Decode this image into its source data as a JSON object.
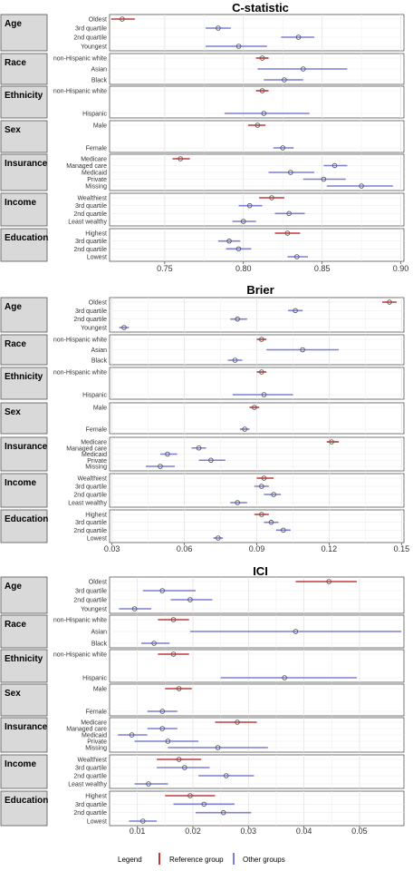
{
  "legend": {
    "title": "Legend",
    "reference": {
      "label": "Reference group",
      "color": "#c0393b"
    },
    "other": {
      "label": "Other groups",
      "color": "#7d7fd4"
    }
  },
  "chart_data": [
    {
      "type": "forest",
      "title": "C-statistic",
      "xlim": [
        0.715,
        0.902
      ],
      "xticks": [
        0.75,
        0.8,
        0.85,
        0.9
      ],
      "xtick_labels": [
        "0.75",
        "0.80",
        "0.85",
        "0.90"
      ],
      "groups": [
        {
          "name": "Age",
          "items": [
            {
              "label": "Oldest",
              "ref": true,
              "est": 0.723,
              "lo": 0.716,
              "hi": 0.731
            },
            {
              "label": "3rd quartile",
              "ref": false,
              "est": 0.784,
              "lo": 0.776,
              "hi": 0.792
            },
            {
              "label": "2nd quartile",
              "ref": false,
              "est": 0.835,
              "lo": 0.824,
              "hi": 0.845
            },
            {
              "label": "Youngest",
              "ref": false,
              "est": 0.797,
              "lo": 0.776,
              "hi": 0.815
            }
          ]
        },
        {
          "name": "Race",
          "items": [
            {
              "label": "non-Hispanic white",
              "ref": true,
              "est": 0.812,
              "lo": 0.808,
              "hi": 0.816
            },
            {
              "label": "Asian",
              "ref": false,
              "est": 0.838,
              "lo": 0.809,
              "hi": 0.866
            },
            {
              "label": "Black",
              "ref": false,
              "est": 0.826,
              "lo": 0.813,
              "hi": 0.838
            }
          ]
        },
        {
          "name": "Ethnicity",
          "items": [
            {
              "label": "non-Hispanic white",
              "ref": true,
              "est": 0.812,
              "lo": 0.808,
              "hi": 0.816
            },
            {
              "label": "Hispanic",
              "ref": false,
              "est": 0.813,
              "lo": 0.788,
              "hi": 0.842
            }
          ]
        },
        {
          "name": "Sex",
          "items": [
            {
              "label": "Male",
              "ref": true,
              "est": 0.809,
              "lo": 0.803,
              "hi": 0.814
            },
            {
              "label": "Female",
              "ref": false,
              "est": 0.825,
              "lo": 0.819,
              "hi": 0.832
            }
          ]
        },
        {
          "name": "Insurance",
          "items": [
            {
              "label": "Medicare",
              "ref": true,
              "est": 0.76,
              "lo": 0.755,
              "hi": 0.766
            },
            {
              "label": "Managed care",
              "ref": false,
              "est": 0.858,
              "lo": 0.851,
              "hi": 0.866
            },
            {
              "label": "Medicaid",
              "ref": false,
              "est": 0.83,
              "lo": 0.816,
              "hi": 0.845
            },
            {
              "label": "Private",
              "ref": false,
              "est": 0.851,
              "lo": 0.838,
              "hi": 0.865
            },
            {
              "label": "Missing",
              "ref": false,
              "est": 0.875,
              "lo": 0.853,
              "hi": 0.895
            }
          ]
        },
        {
          "name": "Income",
          "items": [
            {
              "label": "Wealthiest",
              "ref": true,
              "est": 0.818,
              "lo": 0.81,
              "hi": 0.826
            },
            {
              "label": "3rd quartile",
              "ref": false,
              "est": 0.804,
              "lo": 0.797,
              "hi": 0.812
            },
            {
              "label": "2nd quartile",
              "ref": false,
              "est": 0.829,
              "lo": 0.82,
              "hi": 0.839
            },
            {
              "label": "Least wealthy",
              "ref": false,
              "est": 0.8,
              "lo": 0.793,
              "hi": 0.808
            }
          ]
        },
        {
          "name": "Education",
          "items": [
            {
              "label": "Highest",
              "ref": true,
              "est": 0.828,
              "lo": 0.82,
              "hi": 0.836
            },
            {
              "label": "3rd quartile",
              "ref": false,
              "est": 0.791,
              "lo": 0.784,
              "hi": 0.798
            },
            {
              "label": "2nd quartile",
              "ref": false,
              "est": 0.797,
              "lo": 0.789,
              "hi": 0.805
            },
            {
              "label": "Lowest",
              "ref": false,
              "est": 0.834,
              "lo": 0.828,
              "hi": 0.841
            }
          ]
        }
      ]
    },
    {
      "type": "forest",
      "title": "Brier",
      "xlim": [
        0.029,
        0.151
      ],
      "xticks": [
        0.03,
        0.06,
        0.09,
        0.12,
        0.15
      ],
      "xtick_labels": [
        "0.03",
        "0.06",
        "0.09",
        "0.12",
        "0.15"
      ],
      "groups": [
        {
          "name": "Age",
          "items": [
            {
              "label": "Oldest",
              "ref": true,
              "est": 0.145,
              "lo": 0.142,
              "hi": 0.148
            },
            {
              "label": "3rd quartile",
              "ref": false,
              "est": 0.106,
              "lo": 0.103,
              "hi": 0.109
            },
            {
              "label": "2nd quartile",
              "ref": false,
              "est": 0.082,
              "lo": 0.079,
              "hi": 0.086
            },
            {
              "label": "Youngest",
              "ref": false,
              "est": 0.035,
              "lo": 0.033,
              "hi": 0.037
            }
          ]
        },
        {
          "name": "Race",
          "items": [
            {
              "label": "non-Hispanic white",
              "ref": true,
              "est": 0.092,
              "lo": 0.09,
              "hi": 0.094
            },
            {
              "label": "Asian",
              "ref": false,
              "est": 0.109,
              "lo": 0.094,
              "hi": 0.124
            },
            {
              "label": "Black",
              "ref": false,
              "est": 0.081,
              "lo": 0.078,
              "hi": 0.084
            }
          ]
        },
        {
          "name": "Ethnicity",
          "items": [
            {
              "label": "non-Hispanic white",
              "ref": true,
              "est": 0.092,
              "lo": 0.09,
              "hi": 0.094
            },
            {
              "label": "Hispanic",
              "ref": false,
              "est": 0.093,
              "lo": 0.08,
              "hi": 0.105
            }
          ]
        },
        {
          "name": "Sex",
          "items": [
            {
              "label": "Male",
              "ref": true,
              "est": 0.089,
              "lo": 0.087,
              "hi": 0.091
            },
            {
              "label": "Female",
              "ref": false,
              "est": 0.085,
              "lo": 0.083,
              "hi": 0.087
            }
          ]
        },
        {
          "name": "Insurance",
          "items": [
            {
              "label": "Medicare",
              "ref": true,
              "est": 0.121,
              "lo": 0.119,
              "hi": 0.124
            },
            {
              "label": "Managed care",
              "ref": false,
              "est": 0.066,
              "lo": 0.063,
              "hi": 0.069
            },
            {
              "label": "Medicaid",
              "ref": false,
              "est": 0.053,
              "lo": 0.05,
              "hi": 0.057
            },
            {
              "label": "Private",
              "ref": false,
              "est": 0.071,
              "lo": 0.066,
              "hi": 0.077
            },
            {
              "label": "Missing",
              "ref": false,
              "est": 0.05,
              "lo": 0.044,
              "hi": 0.056
            }
          ]
        },
        {
          "name": "Income",
          "items": [
            {
              "label": "Wealthiest",
              "ref": true,
              "est": 0.093,
              "lo": 0.09,
              "hi": 0.097
            },
            {
              "label": "3rd quartile",
              "ref": false,
              "est": 0.092,
              "lo": 0.089,
              "hi": 0.095
            },
            {
              "label": "2nd quartile",
              "ref": false,
              "est": 0.097,
              "lo": 0.093,
              "hi": 0.1
            },
            {
              "label": "Least wealthy",
              "ref": false,
              "est": 0.082,
              "lo": 0.079,
              "hi": 0.086
            }
          ]
        },
        {
          "name": "Education",
          "items": [
            {
              "label": "Highest",
              "ref": true,
              "est": 0.092,
              "lo": 0.089,
              "hi": 0.095
            },
            {
              "label": "3rd quartile",
              "ref": false,
              "est": 0.096,
              "lo": 0.093,
              "hi": 0.099
            },
            {
              "label": "2nd quartile",
              "ref": false,
              "est": 0.101,
              "lo": 0.098,
              "hi": 0.104
            },
            {
              "label": "Lowest",
              "ref": false,
              "est": 0.074,
              "lo": 0.072,
              "hi": 0.076
            }
          ]
        }
      ]
    },
    {
      "type": "forest",
      "title": "ICI",
      "xlim": [
        0.005,
        0.058
      ],
      "xticks": [
        0.01,
        0.02,
        0.03,
        0.04,
        0.05
      ],
      "xtick_labels": [
        "0.01",
        "0.02",
        "0.03",
        "0.04",
        "0.05"
      ],
      "groups": [
        {
          "name": "Age",
          "items": [
            {
              "label": "Oldest",
              "ref": true,
              "est": 0.0445,
              "lo": 0.0385,
              "hi": 0.0495
            },
            {
              "label": "3rd quartile",
              "ref": false,
              "est": 0.0145,
              "lo": 0.011,
              "hi": 0.0205
            },
            {
              "label": "2nd quartile",
              "ref": false,
              "est": 0.0195,
              "lo": 0.016,
              "hi": 0.0235
            },
            {
              "label": "Youngest",
              "ref": false,
              "est": 0.0095,
              "lo": 0.0067,
              "hi": 0.0125
            }
          ]
        },
        {
          "name": "Race",
          "items": [
            {
              "label": "non-Hispanic white",
              "ref": true,
              "est": 0.0165,
              "lo": 0.0137,
              "hi": 0.0193
            },
            {
              "label": "Asian",
              "ref": false,
              "est": 0.0385,
              "lo": 0.0195,
              "hi": 0.0575
            },
            {
              "label": "Black",
              "ref": false,
              "est": 0.013,
              "lo": 0.0107,
              "hi": 0.0158
            }
          ]
        },
        {
          "name": "Ethnicity",
          "items": [
            {
              "label": "non-Hispanic white",
              "ref": true,
              "est": 0.0165,
              "lo": 0.0137,
              "hi": 0.0193
            },
            {
              "label": "Hispanic",
              "ref": false,
              "est": 0.0365,
              "lo": 0.025,
              "hi": 0.0495
            }
          ]
        },
        {
          "name": "Sex",
          "items": [
            {
              "label": "Male",
              "ref": true,
              "est": 0.0175,
              "lo": 0.015,
              "hi": 0.0198
            },
            {
              "label": "Female",
              "ref": false,
              "est": 0.0145,
              "lo": 0.0118,
              "hi": 0.0172
            }
          ]
        },
        {
          "name": "Insurance",
          "items": [
            {
              "label": "Medicare",
              "ref": true,
              "est": 0.028,
              "lo": 0.024,
              "hi": 0.0315
            },
            {
              "label": "Managed care",
              "ref": false,
              "est": 0.0145,
              "lo": 0.0118,
              "hi": 0.0172
            },
            {
              "label": "Medicaid",
              "ref": false,
              "est": 0.009,
              "lo": 0.0065,
              "hi": 0.0118
            },
            {
              "label": "Private",
              "ref": false,
              "est": 0.0155,
              "lo": 0.0095,
              "hi": 0.021
            },
            {
              "label": "Missing",
              "ref": false,
              "est": 0.0245,
              "lo": 0.0155,
              "hi": 0.0335
            }
          ]
        },
        {
          "name": "Income",
          "items": [
            {
              "label": "Wealthiest",
              "ref": true,
              "est": 0.0175,
              "lo": 0.0135,
              "hi": 0.0215
            },
            {
              "label": "3rd quartile",
              "ref": false,
              "est": 0.0185,
              "lo": 0.0135,
              "hi": 0.023
            },
            {
              "label": "2nd quartile",
              "ref": false,
              "est": 0.026,
              "lo": 0.021,
              "hi": 0.031
            },
            {
              "label": "Least wealthy",
              "ref": false,
              "est": 0.012,
              "lo": 0.0095,
              "hi": 0.0155
            }
          ]
        },
        {
          "name": "Education",
          "items": [
            {
              "label": "Highest",
              "ref": true,
              "est": 0.0195,
              "lo": 0.015,
              "hi": 0.024
            },
            {
              "label": "3rd quartile",
              "ref": false,
              "est": 0.022,
              "lo": 0.0165,
              "hi": 0.0275
            },
            {
              "label": "2nd quartile",
              "ref": false,
              "est": 0.0255,
              "lo": 0.0205,
              "hi": 0.0305
            },
            {
              "label": "Lowest",
              "ref": false,
              "est": 0.011,
              "lo": 0.0085,
              "hi": 0.0135
            }
          ]
        }
      ]
    }
  ]
}
